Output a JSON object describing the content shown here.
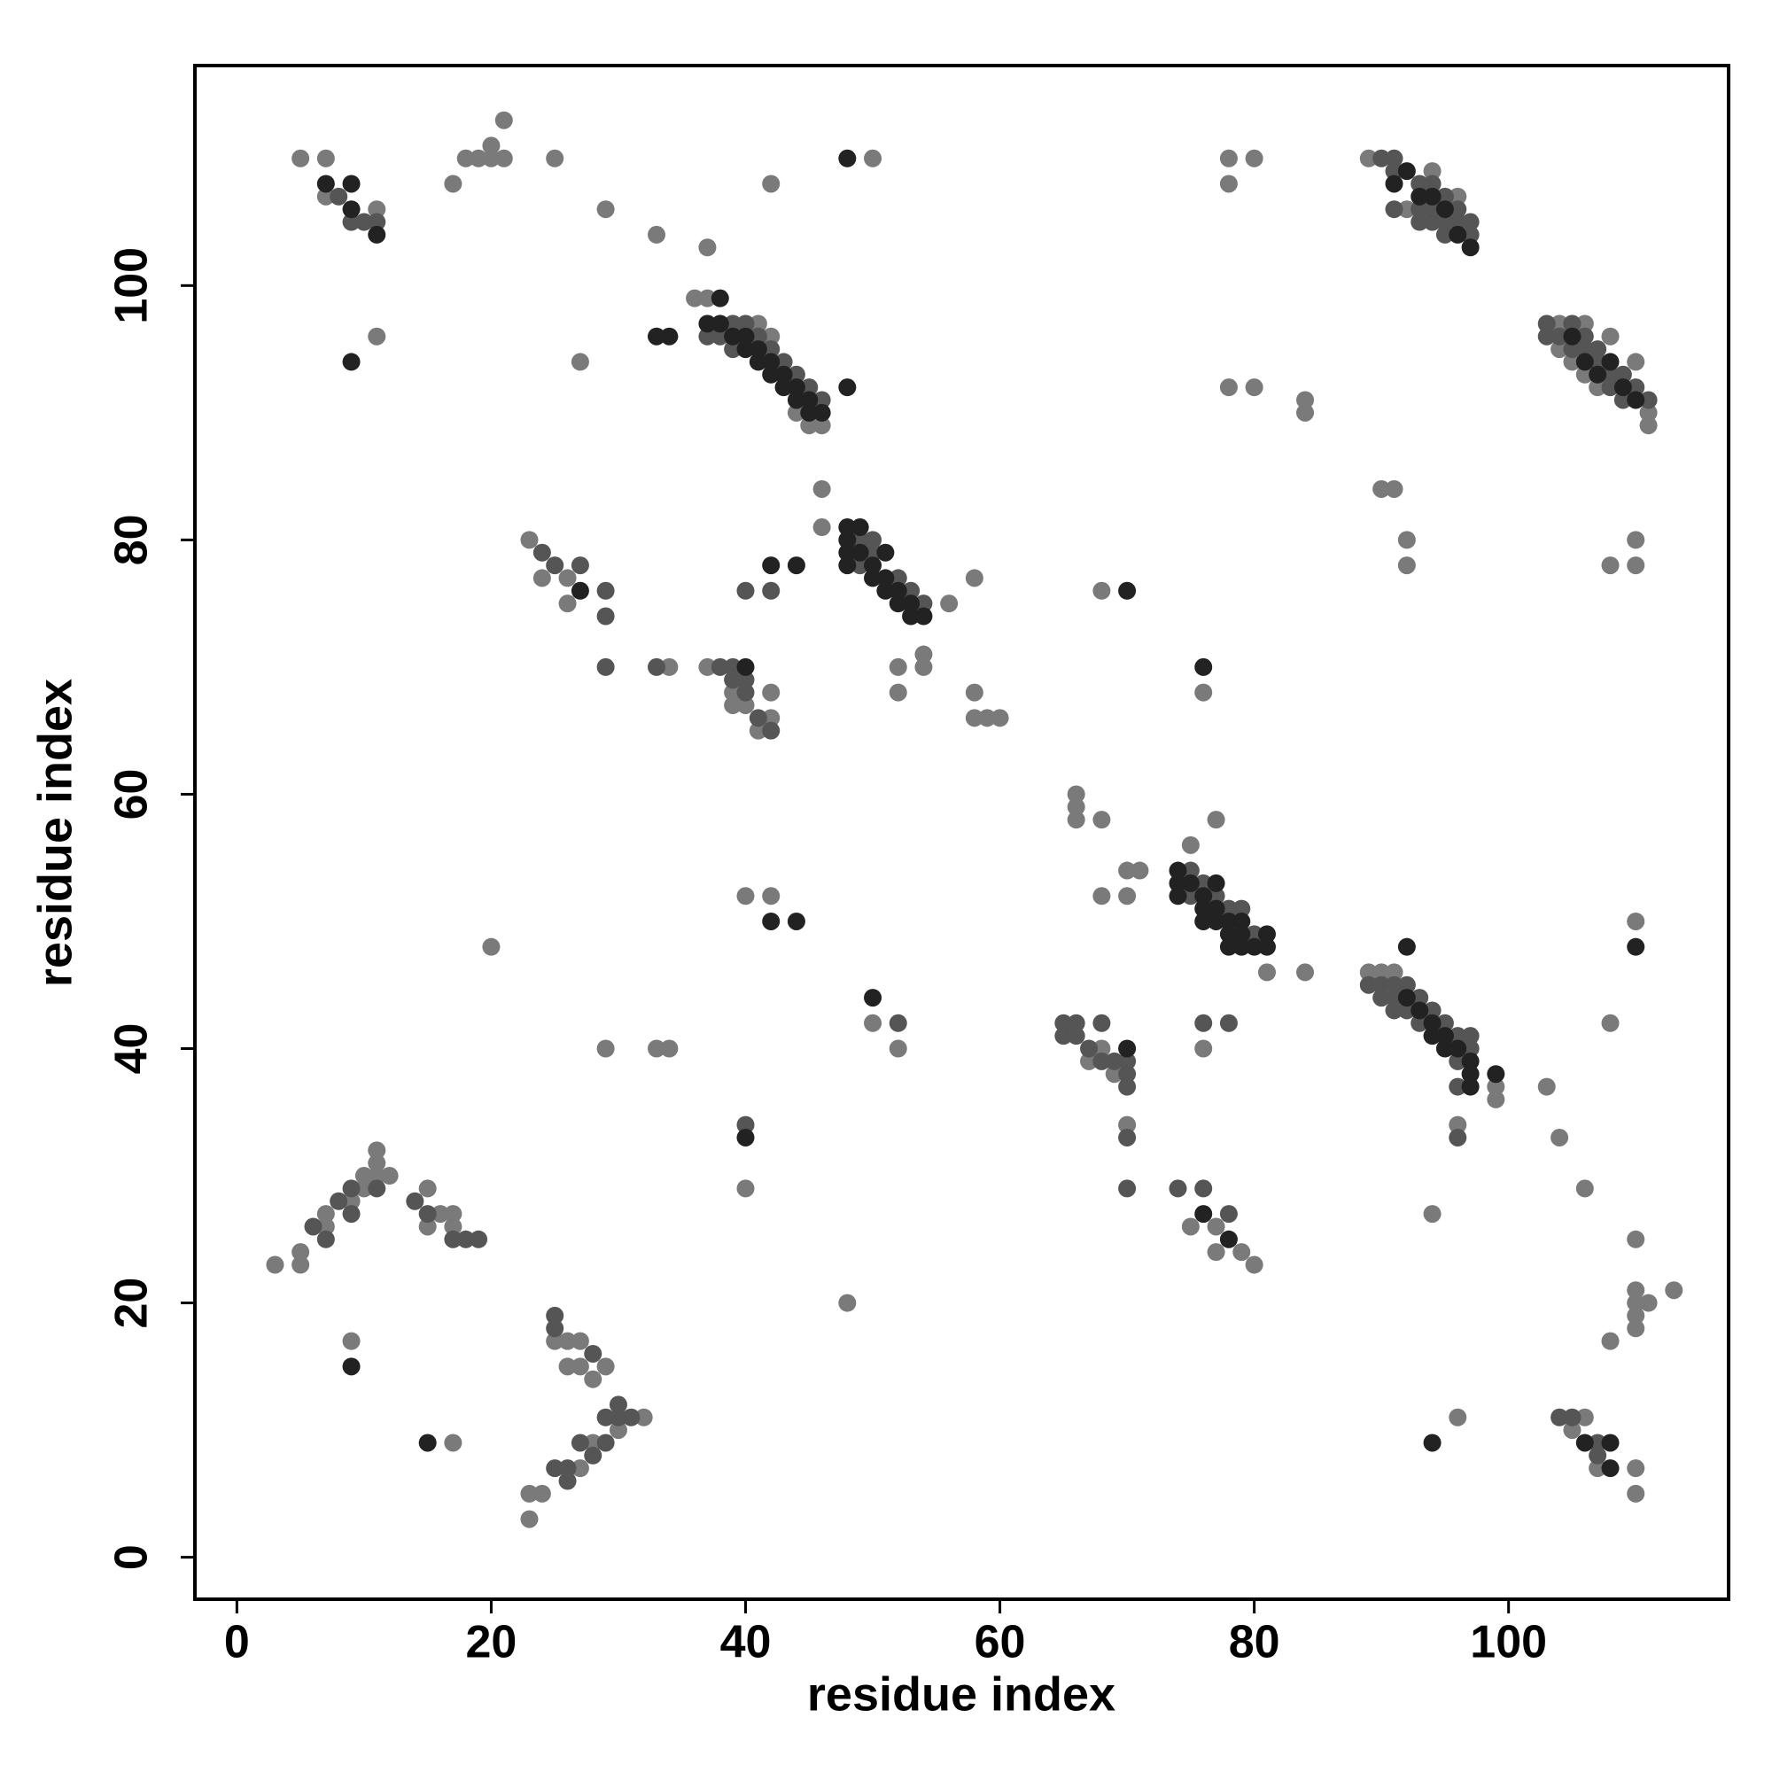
{
  "chart_data": {
    "type": "scatter",
    "x_label": "residue index",
    "y_label": "residue index",
    "xlim": [
      -3.3,
      117.3
    ],
    "ylim": [
      -3.3,
      117.3
    ],
    "xticks": [
      0,
      20,
      40,
      60,
      80,
      100
    ],
    "yticks": [
      0,
      20,
      40,
      60,
      80,
      100
    ],
    "grid": false,
    "series": [
      {
        "color": "#7a7a7a",
        "x": [
          5,
          7,
          7,
          11,
          11,
          17,
          18,
          19,
          20,
          20,
          21,
          21,
          25,
          29,
          33,
          37,
          42,
          50,
          27,
          36,
          37,
          41,
          42,
          46,
          45,
          44,
          46,
          46,
          56,
          58,
          58,
          58,
          59,
          60,
          52,
          52,
          54,
          54,
          23,
          24,
          26,
          26,
          34,
          37,
          39,
          39,
          40,
          41,
          42,
          42,
          40,
          42,
          50,
          52,
          20,
          29,
          33,
          34,
          40,
          48,
          66,
          66,
          66,
          68,
          70,
          71,
          68,
          70,
          68,
          76,
          77,
          75,
          81,
          84,
          76,
          67,
          68,
          69,
          70,
          75,
          77,
          77,
          79,
          80,
          89,
          94,
          96,
          92,
          78,
          80,
          78,
          78,
          80,
          84,
          84,
          90,
          91,
          92,
          92,
          104,
          104,
          105,
          106,
          106,
          107,
          108,
          110,
          111,
          111,
          108,
          110,
          110,
          110,
          89,
          90,
          91,
          99,
          99,
          96,
          103,
          104,
          108,
          106,
          94,
          110,
          110,
          110,
          110,
          110,
          108,
          111,
          113,
          96,
          106,
          105,
          107,
          110,
          110,
          3,
          5,
          5,
          7,
          7,
          9,
          10,
          10,
          11,
          11,
          11,
          12,
          15,
          15,
          16,
          17,
          17,
          9,
          17,
          25,
          26,
          27,
          26,
          27,
          28,
          29,
          30,
          28,
          27,
          23,
          24,
          23,
          32
        ],
        "values": [
          110,
          110,
          107,
          106,
          96,
          108,
          110,
          110,
          111,
          110,
          110,
          113,
          110,
          106,
          104,
          103,
          108,
          110,
          94,
          99,
          99,
          97,
          96,
          89,
          89,
          90,
          84,
          81,
          75,
          77,
          68,
          66,
          66,
          66,
          70,
          68,
          71,
          70,
          80,
          77,
          77,
          75,
          70,
          70,
          68,
          67,
          67,
          65,
          68,
          66,
          52,
          52,
          42,
          40,
          48,
          40,
          40,
          40,
          29,
          20,
          60,
          59,
          58,
          58,
          54,
          54,
          52,
          52,
          76,
          68,
          58,
          56,
          46,
          46,
          40,
          39,
          40,
          38,
          34,
          26,
          26,
          24,
          24,
          23,
          110,
          109,
          107,
          106,
          110,
          110,
          108,
          92,
          92,
          91,
          90,
          84,
          84,
          80,
          78,
          95,
          97,
          94,
          93,
          97,
          92,
          96,
          94,
          89,
          90,
          78,
          80,
          78,
          50,
          46,
          46,
          46,
          36,
          37,
          34,
          37,
          33,
          42,
          29,
          27,
          25,
          21,
          20,
          19,
          18,
          17,
          20,
          21,
          11,
          11,
          10,
          7,
          7,
          5,
          23,
          24,
          23,
          27,
          26,
          28,
          30,
          29,
          32,
          31,
          30,
          30,
          29,
          26,
          27,
          27,
          26,
          17,
          9,
          17,
          17,
          17,
          15,
          15,
          14,
          15,
          10,
          9,
          7,
          5,
          5,
          3,
          11
        ]
      },
      {
        "color": "#555555",
        "x": [
          8,
          9,
          10,
          11,
          38,
          39,
          40,
          37,
          39,
          41,
          42,
          43,
          44,
          45,
          46,
          38,
          39,
          39,
          40,
          40,
          41,
          42,
          49,
          49,
          50,
          50,
          52,
          53,
          54,
          25,
          27,
          29,
          24,
          29,
          29,
          33,
          40,
          42,
          52,
          65,
          66,
          67,
          68,
          69,
          70,
          70,
          70,
          70,
          70,
          74,
          76,
          78,
          78,
          76,
          75,
          75,
          76,
          77,
          78,
          79,
          80,
          91,
          91,
          93,
          93,
          93,
          94,
          94,
          94,
          95,
          95,
          95,
          96,
          96,
          97,
          97,
          90,
          91,
          89,
          90,
          90,
          91,
          91,
          91,
          92,
          92,
          93,
          93,
          94,
          95,
          96,
          96,
          97,
          97,
          96,
          96,
          103,
          103,
          104,
          105,
          105,
          106,
          106,
          107,
          107,
          108,
          108,
          109,
          109,
          110,
          111,
          105,
          107,
          107,
          104,
          7,
          9,
          9,
          11,
          14,
          15,
          17,
          18,
          19,
          6,
          8,
          25,
          25,
          26,
          27,
          28,
          29,
          29,
          30,
          31,
          30,
          28,
          26,
          25,
          66,
          65,
          68,
          40
        ],
        "values": [
          107,
          105,
          105,
          105,
          96,
          97,
          97,
          96,
          95,
          96,
          95,
          94,
          93,
          92,
          91,
          70,
          70,
          69,
          69,
          68,
          66,
          65,
          80,
          78,
          80,
          79,
          77,
          76,
          75,
          78,
          78,
          76,
          79,
          74,
          70,
          70,
          76,
          76,
          42,
          42,
          41,
          40,
          39,
          39,
          39,
          38,
          37,
          33,
          29,
          29,
          29,
          27,
          42,
          42,
          52,
          54,
          53,
          52,
          51,
          51,
          49,
          106,
          109,
          105,
          106,
          108,
          105,
          106,
          108,
          104,
          105,
          107,
          105,
          106,
          104,
          105,
          110,
          110,
          45,
          44,
          45,
          43,
          44,
          45,
          43,
          45,
          42,
          44,
          43,
          42,
          39,
          41,
          40,
          41,
          37,
          33,
          96,
          97,
          96,
          95,
          97,
          95,
          96,
          94,
          95,
          92,
          93,
          91,
          93,
          92,
          91,
          11,
          9,
          8,
          11,
          25,
          29,
          27,
          29,
          28,
          27,
          25,
          25,
          25,
          26,
          28,
          19,
          18,
          7,
          9,
          16,
          9,
          11,
          11,
          11,
          12,
          8,
          6,
          7,
          42,
          41,
          42,
          34
        ]
      },
      {
        "color": "#222222",
        "x": [
          7,
          9,
          9,
          11,
          9,
          48,
          38,
          37,
          33,
          34,
          48,
          38,
          39,
          40,
          40,
          41,
          41,
          42,
          42,
          43,
          43,
          44,
          44,
          45,
          45,
          46,
          48,
          48,
          48,
          48,
          49,
          49,
          50,
          50,
          51,
          51,
          51,
          52,
          52,
          53,
          53,
          54,
          42,
          44,
          50,
          70,
          76,
          70,
          76,
          91,
          92,
          93,
          92,
          94,
          110,
          74,
          74,
          74,
          75,
          76,
          76,
          76,
          77,
          77,
          77,
          78,
          78,
          78,
          79,
          79,
          79,
          80,
          81,
          81,
          92,
          93,
          94,
          94,
          95,
          95,
          96,
          97,
          97,
          97,
          99,
          105,
          106,
          107,
          108,
          109,
          110,
          97,
          96,
          95,
          94,
          106,
          108,
          108,
          42,
          44,
          27,
          40,
          9,
          15,
          40,
          78
        ],
        "values": [
          108,
          108,
          106,
          104,
          94,
          110,
          99,
          97,
          96,
          96,
          92,
          97,
          96,
          96,
          95,
          95,
          94,
          94,
          93,
          93,
          92,
          92,
          91,
          91,
          90,
          90,
          78,
          79,
          80,
          81,
          81,
          79,
          78,
          77,
          76,
          77,
          79,
          76,
          75,
          74,
          75,
          74,
          50,
          50,
          44,
          76,
          70,
          40,
          27,
          108,
          109,
          107,
          48,
          9,
          48,
          52,
          53,
          54,
          53,
          50,
          51,
          52,
          50,
          51,
          53,
          48,
          49,
          50,
          48,
          49,
          50,
          48,
          48,
          49,
          44,
          43,
          42,
          41,
          41,
          40,
          40,
          39,
          38,
          37,
          38,
          96,
          94,
          93,
          94,
          92,
          91,
          103,
          104,
          106,
          107,
          9,
          9,
          7,
          78,
          78,
          76,
          70,
          15,
          9,
          33,
          25
        ]
      }
    ]
  }
}
